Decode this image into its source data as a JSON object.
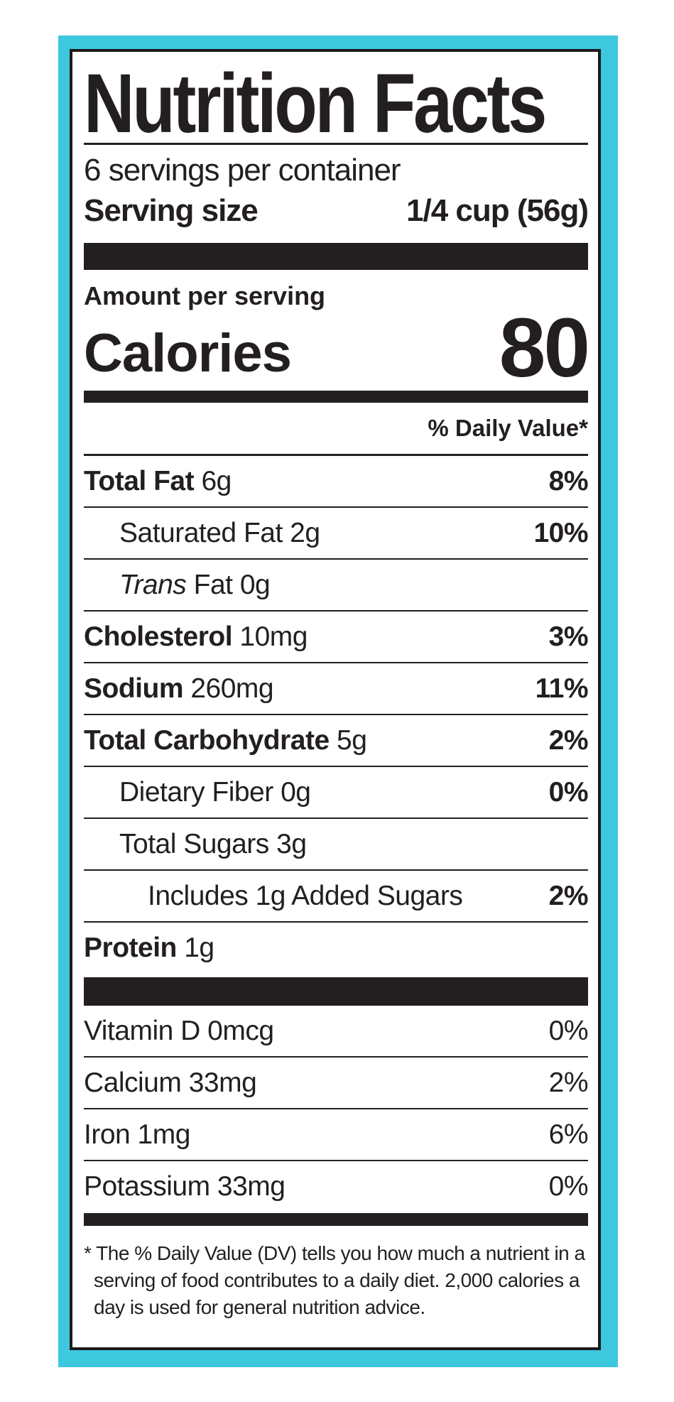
{
  "title": "Nutrition Facts",
  "servings_per_container": "6 servings per container",
  "serving_size": {
    "label": "Serving size",
    "value": "1/4 cup (56g)"
  },
  "amount_per_serving": "Amount per serving",
  "calories": {
    "label": "Calories",
    "value": "80"
  },
  "daily_value_header": "% Daily Value*",
  "nutrients": [
    {
      "name": "Total Fat",
      "amount": "6g",
      "dv": "8%"
    },
    {
      "name": "Saturated Fat",
      "amount": "2g",
      "dv": "10%"
    },
    {
      "name_italic": "Trans",
      "name": "Fat",
      "amount": "0g",
      "dv": ""
    },
    {
      "name": "Cholesterol",
      "amount": "10mg",
      "dv": "3%"
    },
    {
      "name": "Sodium",
      "amount": "260mg",
      "dv": "11%"
    },
    {
      "name": "Total Carbohydrate",
      "amount": "5g",
      "dv": "2%"
    },
    {
      "name": "Dietary Fiber",
      "amount": "0g",
      "dv": "0%"
    },
    {
      "name": "Total Sugars",
      "amount": "3g",
      "dv": ""
    },
    {
      "name": "Includes 1g Added Sugars",
      "amount": "",
      "dv": "2%"
    },
    {
      "name": "Protein",
      "amount": "1g",
      "dv": ""
    }
  ],
  "vitamins": [
    {
      "label": "Vitamin D 0mcg",
      "dv": "0%"
    },
    {
      "label": "Calcium 33mg",
      "dv": "2%"
    },
    {
      "label": "Iron 1mg",
      "dv": "6%"
    },
    {
      "label": "Potassium 33mg",
      "dv": "0%"
    }
  ],
  "footnote": "* The % Daily Value (DV) tells you how much a nutrient in a serving of food contributes to a daily diet. 2,000 calories a day is used for general nutrition advice.",
  "colors": {
    "frame": "#3ec8de",
    "ink": "#231f20"
  }
}
